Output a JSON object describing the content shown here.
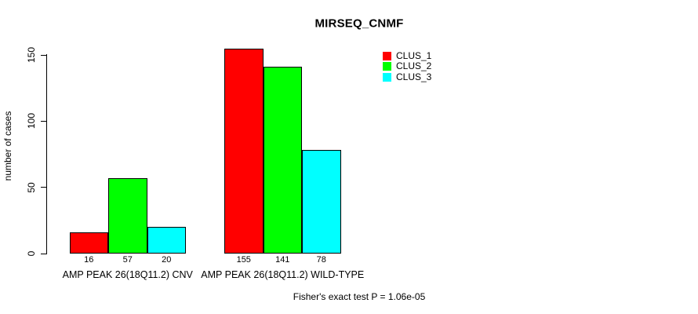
{
  "chart_data": {
    "type": "bar",
    "title": "MIRSEQ_CNMF",
    "ylabel": "number of cases",
    "xlabel": "",
    "ylim": [
      0,
      150
    ],
    "yticks": [
      0,
      50,
      100,
      150
    ],
    "grid": false,
    "legend_position": "top-right",
    "bar_colors_note": "pure R palette colors",
    "categories": [
      "AMP PEAK 26(18Q11.2) CNV",
      "AMP PEAK 26(18Q11.2) WILD-TYPE"
    ],
    "series": [
      {
        "name": "CLUS_1",
        "color": "#ff0000",
        "values": [
          16,
          155
        ]
      },
      {
        "name": "CLUS_2",
        "color": "#00ff00",
        "values": [
          57,
          141
        ]
      },
      {
        "name": "CLUS_3",
        "color": "#00ffff",
        "values": [
          20,
          78
        ]
      }
    ],
    "annotation": "Fisher's exact test P = 1.06e-05"
  },
  "colors": {
    "axis": "#000000",
    "bar_border": "#000000",
    "background": "#ffffff"
  }
}
